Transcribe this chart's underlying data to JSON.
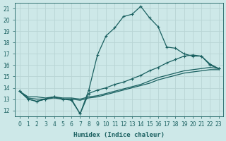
{
  "xlabel": "Humidex (Indice chaleur)",
  "bg_color": "#cde8e8",
  "grid_color": "#b8d4d4",
  "line_color": "#1a6060",
  "xlim": [
    -0.5,
    23.5
  ],
  "ylim": [
    11.5,
    21.5
  ],
  "xticks": [
    0,
    1,
    2,
    3,
    4,
    5,
    6,
    7,
    8,
    9,
    10,
    11,
    12,
    13,
    14,
    15,
    16,
    17,
    18,
    19,
    20,
    21,
    22,
    23
  ],
  "yticks": [
    12,
    13,
    14,
    15,
    16,
    17,
    18,
    19,
    20,
    21
  ],
  "line1_x": [
    0,
    1,
    2,
    3,
    4,
    5,
    6,
    7,
    8,
    9,
    10,
    11,
    12,
    13,
    14,
    15,
    16,
    17,
    18,
    19,
    20,
    21,
    22,
    23
  ],
  "line1_y": [
    13.7,
    13.0,
    12.8,
    13.0,
    13.2,
    13.0,
    13.0,
    11.7,
    13.8,
    16.9,
    18.6,
    19.3,
    20.3,
    20.5,
    21.2,
    20.2,
    19.4,
    17.6,
    17.5,
    17.0,
    16.8,
    16.8,
    16.1,
    15.7
  ],
  "line2_x": [
    0,
    1,
    2,
    3,
    4,
    5,
    6,
    7,
    8,
    9,
    10,
    11,
    12,
    13,
    14,
    15,
    16,
    17,
    18,
    19,
    20,
    21,
    22,
    23
  ],
  "line2_y": [
    13.7,
    13.0,
    12.8,
    13.0,
    13.2,
    13.0,
    12.9,
    11.7,
    13.5,
    13.8,
    14.0,
    14.3,
    14.5,
    14.8,
    15.1,
    15.5,
    15.8,
    16.2,
    16.5,
    16.8,
    16.9,
    16.8,
    16.0,
    15.7
  ],
  "line3_x": [
    0,
    1,
    2,
    3,
    4,
    5,
    6,
    7,
    8,
    9,
    10,
    11,
    12,
    13,
    14,
    15,
    16,
    17,
    18,
    19,
    20,
    21,
    22,
    23
  ],
  "line3_y": [
    13.7,
    13.2,
    13.2,
    13.1,
    13.2,
    13.1,
    13.1,
    13.0,
    13.2,
    13.3,
    13.5,
    13.7,
    13.9,
    14.1,
    14.3,
    14.6,
    14.9,
    15.1,
    15.3,
    15.5,
    15.6,
    15.7,
    15.8,
    15.7
  ],
  "line4_x": [
    0,
    1,
    2,
    3,
    4,
    5,
    6,
    7,
    8,
    9,
    10,
    11,
    12,
    13,
    14,
    15,
    16,
    17,
    18,
    19,
    20,
    21,
    22,
    23
  ],
  "line4_y": [
    13.7,
    13.1,
    13.0,
    13.0,
    13.1,
    13.0,
    13.0,
    12.9,
    13.1,
    13.2,
    13.4,
    13.6,
    13.8,
    14.0,
    14.2,
    14.4,
    14.7,
    14.9,
    15.1,
    15.3,
    15.4,
    15.5,
    15.6,
    15.6
  ]
}
